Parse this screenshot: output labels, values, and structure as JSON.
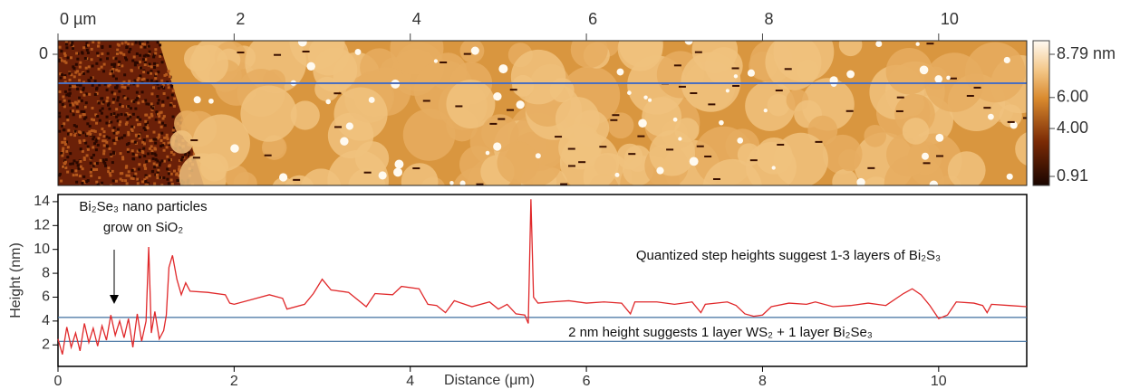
{
  "chart_data": [
    {
      "type": "image",
      "xlim": [
        0,
        11
      ],
      "xticks": [
        {
          "value": 0,
          "label": "0 µm"
        },
        2,
        4,
        6,
        8,
        10
      ],
      "yticks": [
        0
      ],
      "colorbar": {
        "lim": [
          0.91,
          8.79
        ],
        "ticks": [
          {
            "value": 8.79,
            "label": "8.79 nm"
          },
          {
            "value": 6,
            "label": "6.00"
          },
          {
            "value": 4,
            "label": "4.00"
          },
          {
            "value": 0.91,
            "label": "0.91"
          }
        ]
      },
      "profile_line_color": "#4a6fc0"
    },
    {
      "type": "line",
      "xlabel": "Distance (μm)",
      "ylabel": "Height (nm)",
      "xlim": [
        0,
        11
      ],
      "ylim": [
        0.2,
        14.6
      ],
      "xticks": [
        0,
        2,
        4,
        6,
        8,
        10
      ],
      "yticks": [
        2,
        4,
        6,
        8,
        10,
        12,
        14
      ],
      "reference_lines": [
        4.3,
        2.3
      ],
      "reference_color": "#3f6f9f",
      "annotations": [
        "Bi₂Se₃ nano particles",
        "grow on SiO₂",
        "Quantized step heights suggest 1-3 layers of Bi₂S₃",
        "2 nm height suggests 1 layer WS₂ + 1 layer Bi₂Se₃"
      ],
      "series": [
        {
          "color": "#e0282a",
          "x": [
            0,
            0.05,
            0.1,
            0.15,
            0.2,
            0.25,
            0.3,
            0.35,
            0.4,
            0.45,
            0.5,
            0.55,
            0.6,
            0.65,
            0.7,
            0.75,
            0.8,
            0.85,
            0.9,
            0.95,
            1.0,
            1.03,
            1.06,
            1.1,
            1.15,
            1.2,
            1.23,
            1.26,
            1.3,
            1.35,
            1.4,
            1.45,
            1.5,
            1.7,
            1.9,
            1.95,
            2.0,
            2.2,
            2.4,
            2.55,
            2.6,
            2.8,
            2.9,
            3.0,
            3.1,
            3.3,
            3.5,
            3.6,
            3.8,
            3.9,
            4.1,
            4.2,
            4.3,
            4.4,
            4.5,
            4.7,
            4.9,
            5.0,
            5.1,
            5.2,
            5.3,
            5.34,
            5.37,
            5.4,
            5.45,
            5.6,
            5.8,
            6.0,
            6.2,
            6.4,
            6.5,
            6.55,
            6.8,
            7.0,
            7.2,
            7.3,
            7.35,
            7.6,
            7.7,
            7.8,
            7.9,
            8.0,
            8.1,
            8.3,
            8.5,
            8.6,
            8.8,
            9.0,
            9.2,
            9.4,
            9.6,
            9.7,
            9.8,
            9.9,
            10.0,
            10.1,
            10.2,
            10.4,
            10.5,
            10.55,
            10.6,
            10.8,
            11.0
          ],
          "values": [
            2.5,
            1.2,
            3.5,
            1.8,
            3.0,
            1.5,
            3.8,
            2.2,
            3.4,
            1.9,
            3.6,
            2.4,
            4.5,
            2.8,
            4.0,
            2.6,
            4.2,
            1.8,
            4.6,
            2.3,
            4.0,
            10.2,
            3.0,
            4.8,
            2.5,
            3.2,
            4.5,
            8.5,
            9.5,
            7.5,
            6.2,
            7.2,
            6.5,
            6.4,
            6.2,
            5.5,
            5.4,
            5.8,
            6.2,
            5.9,
            5.0,
            5.4,
            6.3,
            7.5,
            6.6,
            6.4,
            5.2,
            6.3,
            6.2,
            6.9,
            6.7,
            5.4,
            5.3,
            4.7,
            5.7,
            5.2,
            5.6,
            5.0,
            5.4,
            4.6,
            4.5,
            3.8,
            14.2,
            6.0,
            5.5,
            5.6,
            5.7,
            5.5,
            5.6,
            5.5,
            4.6,
            5.6,
            5.6,
            5.4,
            5.6,
            4.7,
            5.4,
            5.6,
            5.3,
            4.6,
            4.4,
            4.5,
            5.2,
            5.5,
            5.4,
            5.6,
            5.2,
            5.3,
            5.5,
            5.3,
            6.3,
            6.7,
            6.2,
            5.3,
            4.2,
            4.5,
            5.6,
            5.5,
            5.3,
            4.7,
            5.4,
            5.3,
            5.2
          ]
        }
      ]
    }
  ]
}
